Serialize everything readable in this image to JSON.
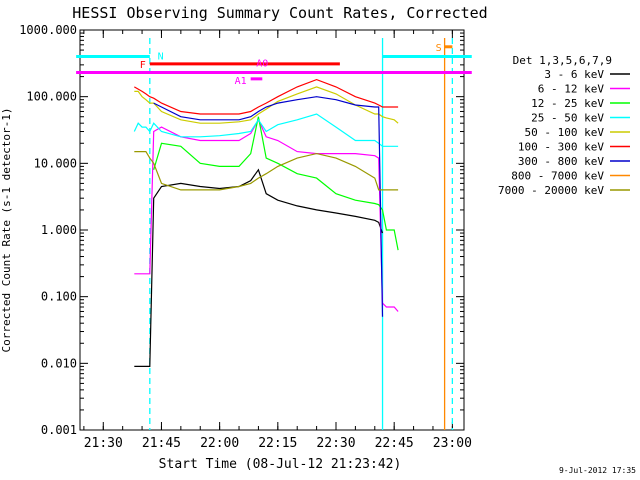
{
  "chart_data": {
    "type": "line",
    "title": "HESSI Observing Summary Count Rates, Corrected",
    "xlabel": "Start Time (08-Jul-12 21:23:42)",
    "ylabel": "Corrected Count Rate (s-1 detector-1)",
    "yscale": "log",
    "ylim": [
      0.001,
      1000
    ],
    "xlim_minutes": [
      21.4,
      23.05
    ],
    "x_ticks": [
      "21:30",
      "21:45",
      "22:00",
      "22:15",
      "22:30",
      "22:45",
      "23:00"
    ],
    "y_ticks": [
      "1000.000",
      "100.000",
      "10.000",
      "1.000",
      "0.100",
      "0.010",
      "0.001"
    ],
    "timestamp": "9-Jul-2012 17:35",
    "legend": {
      "placement": "right",
      "header": "Det 1,3,5,6,7,9",
      "entries": [
        {
          "label": "3 - 6 keV",
          "color": "#000000"
        },
        {
          "label": "6 - 12 keV",
          "color": "#ff00ff"
        },
        {
          "label": "12 - 25 keV",
          "color": "#00ff00"
        },
        {
          "label": "25 - 50 keV",
          "color": "#00ffff"
        },
        {
          "label": "50 - 100 keV",
          "color": "#cccc00"
        },
        {
          "label": "100 - 300 keV",
          "color": "#ff0000"
        },
        {
          "label": "300 - 800 keV",
          "color": "#0000cc"
        },
        {
          "label": "800 - 7000 keV",
          "color": "#ff8800"
        },
        {
          "label": "7000 - 20000 keV",
          "color": "#999900"
        }
      ]
    },
    "flag_bars": [
      {
        "label": "N",
        "color": "#00ffff",
        "segments": [
          [
            "21:23",
            "21:42"
          ],
          [
            "22:42",
            "23:05"
          ]
        ],
        "y": 400
      },
      {
        "label": "F",
        "color": "#ff0000",
        "segments": [
          [
            "21:42",
            "22:31"
          ]
        ],
        "y": 310
      },
      {
        "label": "",
        "color": "#ff00ff",
        "segments": [
          [
            "21:23",
            "23:05"
          ]
        ],
        "y": 230
      },
      {
        "label": "S",
        "color": "#ff8800",
        "segments": [
          [
            "22:58",
            "23:00"
          ]
        ],
        "y": 560
      },
      {
        "label": "A1",
        "color": "#ff00ff",
        "segments": [
          [
            "22:08",
            "22:11"
          ]
        ],
        "y": 185
      },
      {
        "label": "A0",
        "color": "#ff00ff",
        "segments": [],
        "y": 240
      }
    ],
    "vertical_markers": [
      {
        "time": "21:42",
        "color": "#00ffff",
        "style": "dashed"
      },
      {
        "time": "22:42",
        "color": "#00ffff",
        "style": "solid"
      },
      {
        "time": "22:58",
        "color": "#ff8800",
        "style": "solid"
      },
      {
        "time": "23:00",
        "color": "#00ffff",
        "style": "dashed"
      }
    ],
    "x": [
      "21:38",
      "21:39",
      "21:40",
      "21:41",
      "21:42",
      "21:43",
      "21:45",
      "21:50",
      "21:55",
      "22:00",
      "22:05",
      "22:08",
      "22:10",
      "22:12",
      "22:15",
      "22:20",
      "22:25",
      "22:30",
      "22:35",
      "22:40",
      "22:41",
      "22:42",
      "22:43",
      "22:45",
      "22:46"
    ],
    "series": [
      {
        "name": "3 - 6 keV",
        "color": "#000000",
        "values": [
          0.009,
          0.009,
          0.009,
          0.009,
          0.009,
          3.0,
          4.5,
          5.0,
          4.5,
          4.2,
          4.5,
          5.5,
          8.0,
          3.5,
          2.8,
          2.3,
          2.0,
          1.8,
          1.6,
          1.4,
          1.3,
          0.9,
          null,
          null,
          null
        ]
      },
      {
        "name": "6 - 12 keV",
        "color": "#ff00ff",
        "values": [
          0.22,
          0.22,
          0.22,
          0.22,
          0.22,
          30,
          35,
          25,
          22,
          22,
          22,
          28,
          45,
          25,
          22,
          15,
          14,
          14,
          14,
          13,
          12,
          0.08,
          0.07,
          0.07,
          0.06
        ]
      },
      {
        "name": "12 - 25 keV",
        "color": "#00ff00",
        "values": [
          null,
          null,
          null,
          null,
          null,
          8,
          20,
          18,
          10,
          9,
          9,
          14,
          50,
          12,
          10,
          7,
          6,
          3.5,
          2.8,
          2.5,
          2.4,
          2.0,
          1.0,
          1.0,
          0.5
        ]
      },
      {
        "name": "25 - 50 keV",
        "color": "#00ffff",
        "values": [
          30,
          40,
          35,
          35,
          30,
          40,
          30,
          25,
          25,
          26,
          28,
          30,
          45,
          30,
          38,
          45,
          55,
          35,
          22,
          22,
          20,
          18,
          18,
          18,
          18
        ]
      },
      {
        "name": "50 - 100 keV",
        "color": "#cccc00",
        "values": [
          120,
          120,
          100,
          90,
          80,
          80,
          60,
          45,
          40,
          40,
          42,
          45,
          55,
          65,
          85,
          110,
          140,
          110,
          75,
          55,
          55,
          50,
          48,
          45,
          40
        ]
      },
      {
        "name": "100 - 300 keV",
        "color": "#ff0000",
        "values": [
          140,
          130,
          120,
          110,
          100,
          95,
          80,
          60,
          55,
          55,
          55,
          60,
          70,
          80,
          100,
          140,
          180,
          140,
          100,
          80,
          75,
          70,
          70,
          70,
          70
        ]
      },
      {
        "name": "300 - 800 keV",
        "color": "#0000cc",
        "values": [
          null,
          null,
          null,
          null,
          null,
          80,
          70,
          50,
          45,
          45,
          45,
          50,
          60,
          70,
          80,
          90,
          100,
          90,
          75,
          70,
          70,
          0.05,
          null,
          null,
          null
        ]
      },
      {
        "name": "800 - 7000 keV",
        "color": "#ff8800",
        "values": [
          null,
          null,
          null,
          null,
          null,
          null,
          null,
          null,
          null,
          null,
          null,
          null,
          null,
          null,
          null,
          null,
          null,
          null,
          null,
          null,
          null,
          null,
          null,
          null,
          null
        ]
      },
      {
        "name": "7000 - 20000 keV",
        "color": "#999900",
        "values": [
          15,
          15,
          15,
          15,
          12,
          10,
          5,
          4,
          4,
          4,
          4.5,
          5,
          6,
          7,
          9,
          12,
          14,
          12,
          9,
          6,
          4,
          4,
          4,
          4,
          4
        ]
      }
    ]
  }
}
